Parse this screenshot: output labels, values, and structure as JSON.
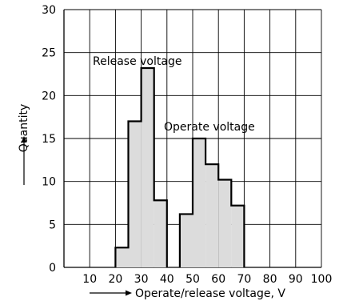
{
  "chart_data": {
    "type": "bar",
    "title": "",
    "xlabel": "Operate/release voltage, V",
    "ylabel": "Quantity",
    "xlim": [
      0,
      100
    ],
    "ylim": [
      0,
      30
    ],
    "x_ticks": [
      10,
      20,
      30,
      40,
      50,
      60,
      70,
      80,
      90,
      100
    ],
    "y_ticks": [
      0,
      5,
      10,
      15,
      20,
      25,
      30
    ],
    "grid": true,
    "bin_width": 5,
    "series": [
      {
        "name": "Release voltage",
        "bins": [
          {
            "x_start": 20,
            "x_end": 25,
            "value": 2.3
          },
          {
            "x_start": 25,
            "x_end": 30,
            "value": 17
          },
          {
            "x_start": 30,
            "x_end": 35,
            "value": 23.2
          },
          {
            "x_start": 35,
            "x_end": 40,
            "value": 7.8
          }
        ]
      },
      {
        "name": "Operate voltage",
        "bins": [
          {
            "x_start": 45,
            "x_end": 50,
            "value": 6.2
          },
          {
            "x_start": 50,
            "x_end": 55,
            "value": 15
          },
          {
            "x_start": 55,
            "x_end": 60,
            "value": 12
          },
          {
            "x_start": 60,
            "x_end": 65,
            "value": 10.2
          },
          {
            "x_start": 65,
            "x_end": 70,
            "value": 7.2
          }
        ]
      }
    ],
    "colors": {
      "fill": "#dcdcdc",
      "outline": "#000000",
      "grid": "#000000"
    }
  }
}
